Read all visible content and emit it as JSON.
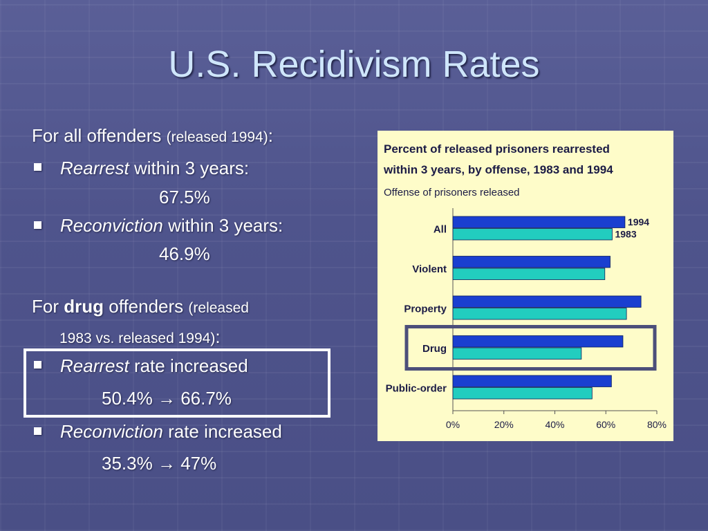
{
  "slide": {
    "title": "U.S. Recidivism Rates",
    "all_intro": "For all offenders",
    "all_intro_note": "(released 1994)",
    "all_intro_colon": ":",
    "rearrest_term": "Rearrest",
    "rearrest_text": "within 3 years:",
    "rearrest_value": "67.5%",
    "reconviction_term": "Reconviction",
    "reconviction_text": "within 3 years:",
    "reconviction_value": "46.9%",
    "drug_intro_for": "For",
    "drug_intro_bold": "drug",
    "drug_intro_rest": "offenders",
    "drug_intro_note_1": "(released",
    "drug_intro_note_2": "1983 vs. released 1994)",
    "drug_intro_colon": ":",
    "drug_rearrest_term": "Rearrest",
    "drug_rearrest_text": "rate increased",
    "drug_rearrest_from": "50.4%",
    "drug_rearrest_arrow": "→",
    "drug_rearrest_to": "66.7%",
    "drug_reconviction_term": "Reconviction",
    "drug_reconviction_text": "rate increased",
    "drug_reconviction_from": "35.3%",
    "drug_reconviction_arrow": "→",
    "drug_reconviction_to": "47%"
  },
  "colors": {
    "color_1994": "#1a3fd0",
    "color_1983": "#22cdbf",
    "highlight_box": "#4c4f7a"
  },
  "chart_data": {
    "type": "bar",
    "orientation": "horizontal",
    "title_line1": "Percent of released prisoners rearrested",
    "title_line2": "within 3 years, by offense, 1983 and 1994",
    "subtitle": "Offense of prisoners released",
    "categories": [
      "All",
      "Violent",
      "Property",
      "Drug",
      "Public-order"
    ],
    "series": [
      {
        "name": "1994",
        "values": [
          67.5,
          61.7,
          73.8,
          66.7,
          62.2
        ]
      },
      {
        "name": "1983",
        "values": [
          62.5,
          59.6,
          68.1,
          50.4,
          54.6
        ]
      }
    ],
    "xlim": [
      0,
      80
    ],
    "xticks": [
      "0%",
      "20%",
      "40%",
      "60%",
      "80%"
    ],
    "highlighted_category": "Drug"
  }
}
